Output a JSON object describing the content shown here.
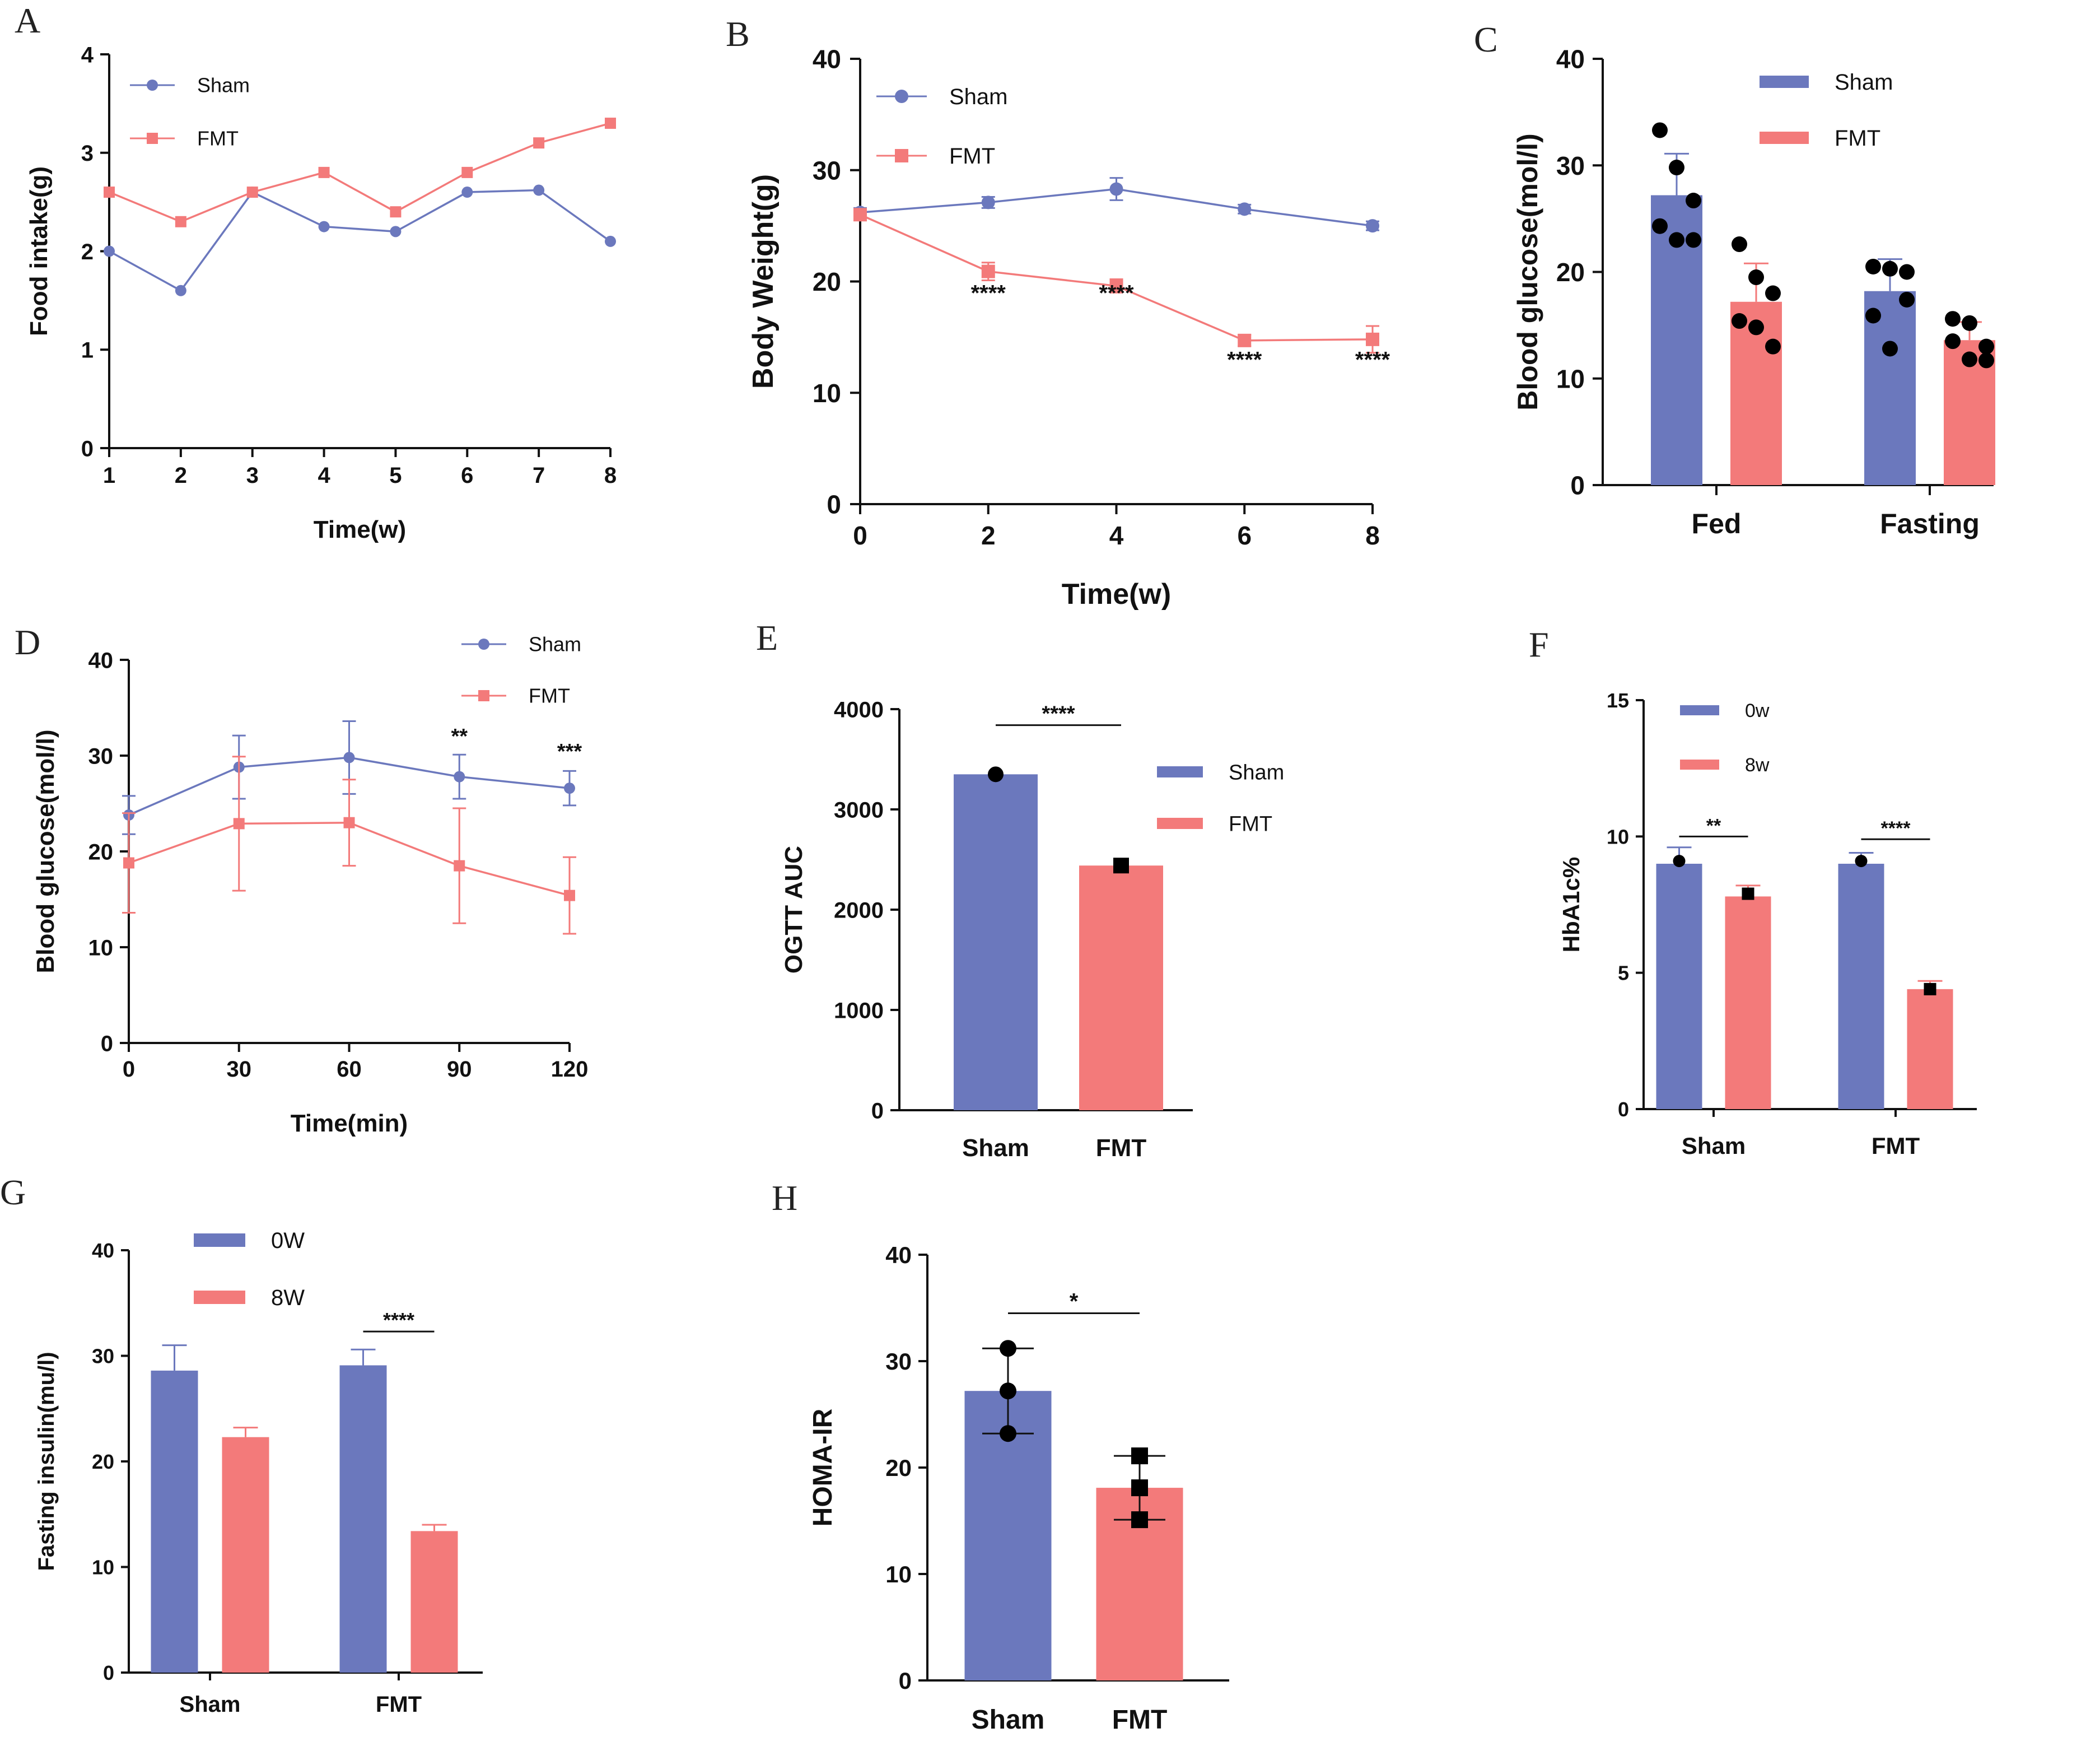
{
  "colors": {
    "sham": "#6b78bd",
    "fmt": "#f37a7a",
    "axis": "#111111",
    "dot": "#000000"
  },
  "chart_data": [
    {
      "id": "A",
      "panel": "A",
      "type": "line",
      "xlabel": "Time(w)",
      "ylabel": "Food intake(g)",
      "xlim": [
        1,
        8
      ],
      "ylim": [
        0,
        4
      ],
      "xticks": [
        1,
        2,
        3,
        4,
        5,
        6,
        7,
        8
      ],
      "yticks": [
        0,
        1,
        2,
        3,
        4
      ],
      "series": [
        {
          "name": "Sham",
          "marker": "circle",
          "x": [
            1,
            2,
            3,
            4,
            5,
            6,
            7,
            8
          ],
          "y": [
            2.0,
            1.6,
            2.6,
            2.25,
            2.2,
            2.6,
            2.62,
            2.1
          ]
        },
        {
          "name": "FMT",
          "marker": "square",
          "x": [
            1,
            2,
            3,
            4,
            5,
            6,
            7,
            8
          ],
          "y": [
            2.6,
            2.3,
            2.6,
            2.8,
            2.4,
            2.8,
            3.1,
            3.3
          ]
        }
      ],
      "legend": "top-left"
    },
    {
      "id": "B",
      "panel": "B",
      "type": "line",
      "xlabel": "Time(w)",
      "ylabel": "Body Weight(g)",
      "xlim": [
        0,
        8
      ],
      "ylim": [
        0,
        40
      ],
      "xticks": [
        0,
        2,
        4,
        6,
        8
      ],
      "yticks": [
        0,
        10,
        20,
        30,
        40
      ],
      "series": [
        {
          "name": "Sham",
          "marker": "circle",
          "x": [
            0,
            2,
            4,
            6,
            8
          ],
          "y": [
            26.2,
            27.1,
            28.3,
            26.5,
            25.0
          ],
          "err": [
            0.4,
            0.5,
            1.0,
            0.4,
            0.4
          ]
        },
        {
          "name": "FMT",
          "marker": "square",
          "x": [
            0,
            2,
            4,
            6,
            8
          ],
          "y": [
            26.0,
            20.9,
            19.6,
            14.7,
            14.8
          ],
          "err": [
            0.4,
            0.8,
            0.6,
            0.5,
            1.2
          ]
        }
      ],
      "annotations": [
        {
          "x": 2,
          "y": 18.3,
          "text": "****"
        },
        {
          "x": 4,
          "y": 18.3,
          "text": "****"
        },
        {
          "x": 6,
          "y": 12.3,
          "text": "****"
        },
        {
          "x": 8,
          "y": 12.3,
          "text": "****"
        }
      ],
      "legend": "top-left"
    },
    {
      "id": "C",
      "panel": "C",
      "type": "bar",
      "xlabel": "",
      "ylabel": "Blood glucose(mol/l)",
      "ylim": [
        0,
        40
      ],
      "yticks": [
        0,
        10,
        20,
        30,
        40
      ],
      "categories": [
        "Fed",
        "Fasting"
      ],
      "series": [
        {
          "name": "Sham",
          "values": [
            27.2,
            18.2
          ],
          "err": [
            3.9,
            3.0
          ],
          "points": [
            [
              33.3,
              29.8,
              26.7,
              24.3,
              23.0,
              23.0
            ],
            [
              20.5,
              20.3,
              17.4,
              15.9,
              12.8,
              20.0
            ]
          ],
          "marker": "circle"
        },
        {
          "name": "FMT",
          "values": [
            17.2,
            13.6
          ],
          "err": [
            3.6,
            1.7
          ],
          "points": [
            [
              22.6,
              19.5,
              18.0,
              15.4,
              14.8,
              13.0
            ],
            [
              15.6,
              15.2,
              13.0,
              13.5,
              11.8,
              11.7
            ]
          ],
          "marker": "circle"
        }
      ],
      "legend": "top-right"
    },
    {
      "id": "D",
      "panel": "D",
      "type": "line",
      "xlabel": "Time(min)",
      "ylabel": "Blood glucose(mol/l)",
      "xlim": [
        0,
        120
      ],
      "ylim": [
        0,
        40
      ],
      "xticks": [
        0,
        30,
        60,
        90,
        120
      ],
      "yticks": [
        0,
        10,
        20,
        30,
        40
      ],
      "series": [
        {
          "name": "Sham",
          "marker": "circle",
          "x": [
            0,
            30,
            60,
            90,
            120
          ],
          "y": [
            23.8,
            28.8,
            29.8,
            27.8,
            26.6
          ],
          "err": [
            2.0,
            3.3,
            3.8,
            2.3,
            1.8
          ]
        },
        {
          "name": "FMT",
          "marker": "square",
          "x": [
            0,
            30,
            60,
            90,
            120
          ],
          "y": [
            18.8,
            22.9,
            23.0,
            18.5,
            15.4
          ],
          "err": [
            5.2,
            7.0,
            4.5,
            6.0,
            4.0
          ]
        }
      ],
      "annotations": [
        {
          "x": 90,
          "y": 31.3,
          "text": "**"
        },
        {
          "x": 120,
          "y": 29.7,
          "text": "***"
        }
      ],
      "legend": "top-right"
    },
    {
      "id": "E",
      "panel": "E",
      "type": "bar",
      "xlabel": "",
      "ylabel": "OGTT AUC",
      "ylim": [
        0,
        4000
      ],
      "yticks": [
        0,
        1000,
        2000,
        3000,
        4000
      ],
      "categories": [
        "Sham",
        "FMT"
      ],
      "values": [
        3350,
        2440
      ],
      "points": [
        [
          3350
        ],
        [
          2440
        ]
      ],
      "point_markers": [
        "circle",
        "square"
      ],
      "brackets": [
        {
          "from": 0,
          "to": 1,
          "y": 3840,
          "text": "****"
        }
      ],
      "legend_labels": [
        "Sham",
        "FMT"
      ],
      "legend": "top-right"
    },
    {
      "id": "F",
      "panel": "F",
      "type": "bar",
      "xlabel": "",
      "ylabel": "HbA1c%",
      "ylim": [
        0,
        15
      ],
      "yticks": [
        0,
        5,
        10,
        15
      ],
      "categories": [
        "Sham",
        "FMT"
      ],
      "series": [
        {
          "name": "0w",
          "values": [
            9.0,
            9.0
          ],
          "err": [
            0.6,
            0.4
          ],
          "points": [
            [
              9.1
            ],
            [
              9.1
            ]
          ],
          "marker": "circle"
        },
        {
          "name": "8w",
          "values": [
            7.8,
            4.4
          ],
          "err": [
            0.4,
            0.3
          ],
          "points": [
            [
              7.9
            ],
            [
              4.4
            ]
          ],
          "marker": "square"
        }
      ],
      "brackets": [
        {
          "group": 0,
          "y": 10.0,
          "text": "**"
        },
        {
          "group": 1,
          "y": 9.9,
          "text": "****"
        }
      ],
      "legend": "top-left"
    },
    {
      "id": "G",
      "panel": "G",
      "type": "bar",
      "xlabel": "",
      "ylabel": "Fasting insulin(mu/l)",
      "ylim": [
        0,
        40
      ],
      "yticks": [
        0,
        10,
        20,
        30,
        40
      ],
      "categories": [
        "Sham",
        "FMT"
      ],
      "series": [
        {
          "name": "0W",
          "values": [
            28.6,
            29.1
          ],
          "err": [
            2.4,
            1.5
          ]
        },
        {
          "name": "8W",
          "values": [
            22.3,
            13.4
          ],
          "err": [
            0.9,
            0.6
          ]
        }
      ],
      "brackets": [
        {
          "group": 1,
          "y": 32.3,
          "text": "****"
        }
      ],
      "legend": "top-left"
    },
    {
      "id": "H",
      "panel": "H",
      "type": "bar",
      "xlabel": "",
      "ylabel": "HOMA-IR",
      "ylim": [
        0,
        40
      ],
      "yticks": [
        0,
        10,
        20,
        30,
        40
      ],
      "categories": [
        "Sham",
        "FMT"
      ],
      "values": [
        27.2,
        18.1
      ],
      "err": [
        4.0,
        3.0
      ],
      "points": [
        [
          31.2,
          27.2,
          23.2
        ],
        [
          21.1,
          18.1,
          15.1
        ]
      ],
      "point_markers": [
        "circle",
        "square"
      ],
      "brackets": [
        {
          "from": 0,
          "to": 1,
          "y": 34.5,
          "text": "*"
        }
      ]
    }
  ]
}
